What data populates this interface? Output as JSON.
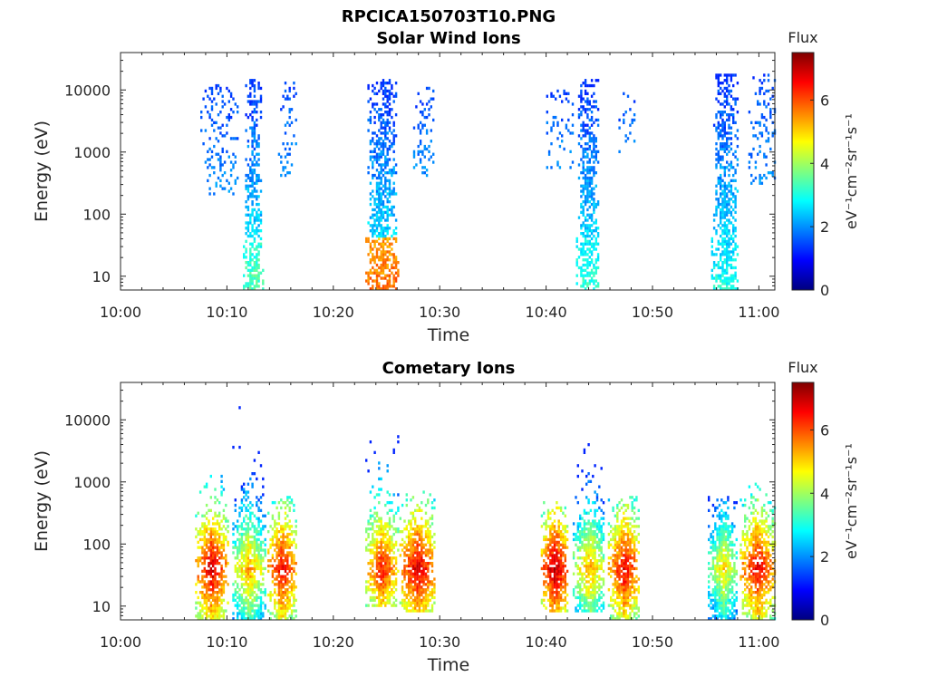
{
  "figure_title": "RPCICA150703T10.PNG",
  "colorbar_colors": [
    "#00007f",
    "#0000ff",
    "#007fff",
    "#00ffff",
    "#7fff7f",
    "#ffff00",
    "#ff7f00",
    "#ff0000",
    "#7f0000"
  ],
  "chart_data": [
    {
      "type": "heatmap",
      "title": "Solar Wind Ions",
      "xlabel": "Time",
      "ylabel": "Energy (eV)",
      "x_tick_labels": [
        "10:00",
        "10:10",
        "10:20",
        "10:30",
        "10:40",
        "10:50",
        "11:00"
      ],
      "x_range_minutes": [
        0,
        61.5
      ],
      "y_scale": "log",
      "y_tick_labels": [
        "10",
        "100",
        "1000",
        "10000"
      ],
      "y_range": [
        6,
        40000
      ],
      "colorbar": {
        "title": "Flux",
        "label": "eV⁻¹cm⁻²sr⁻¹s⁻¹",
        "range": [
          0,
          7.5
        ],
        "tick_labels": [
          "0",
          "2",
          "4",
          "6"
        ]
      },
      "bursts": [
        {
          "t_min": 7.5,
          "t_max": 11.0,
          "e_min": 200,
          "e_max": 12000,
          "peak_flux": 2.0,
          "sparse": true
        },
        {
          "t_min": 11.5,
          "t_max": 13.3,
          "e_min": 6,
          "e_max": 15000,
          "peak_flux": 3.4
        },
        {
          "t_min": 14.8,
          "t_max": 16.5,
          "e_min": 400,
          "e_max": 15000,
          "peak_flux": 2.0,
          "sparse": true
        },
        {
          "t_min": 23.0,
          "t_max": 26.0,
          "e_min": 6,
          "e_max": 15000,
          "peak_flux": 5.8
        },
        {
          "t_min": 27.5,
          "t_max": 29.3,
          "e_min": 400,
          "e_max": 11000,
          "peak_flux": 2.0,
          "sparse": true
        },
        {
          "t_min": 40.0,
          "t_max": 42.5,
          "e_min": 500,
          "e_max": 10000,
          "peak_flux": 2.0,
          "sparse": true
        },
        {
          "t_min": 42.8,
          "t_max": 45.0,
          "e_min": 6,
          "e_max": 15000,
          "peak_flux": 3.2
        },
        {
          "t_min": 46.8,
          "t_max": 48.3,
          "e_min": 700,
          "e_max": 10000,
          "peak_flux": 2.0,
          "sparse": true
        },
        {
          "t_min": 55.5,
          "t_max": 58.0,
          "e_min": 6,
          "e_max": 18000,
          "peak_flux": 3.0
        },
        {
          "t_min": 59.0,
          "t_max": 61.5,
          "e_min": 300,
          "e_max": 18000,
          "peak_flux": 2.0,
          "sparse": true
        }
      ]
    },
    {
      "type": "heatmap",
      "title": "Cometary Ions",
      "xlabel": "Time",
      "ylabel": "Energy (eV)",
      "x_tick_labels": [
        "10:00",
        "10:10",
        "10:20",
        "10:30",
        "10:40",
        "10:50",
        "11:00"
      ],
      "x_range_minutes": [
        0,
        61.5
      ],
      "y_scale": "log",
      "y_tick_labels": [
        "10",
        "100",
        "1000",
        "10000"
      ],
      "y_range": [
        6,
        40000
      ],
      "colorbar": {
        "title": "Flux",
        "label": "eV⁻¹cm⁻²sr⁻¹s⁻¹",
        "range": [
          0,
          7.5
        ],
        "tick_labels": [
          "0",
          "2",
          "4",
          "6"
        ]
      },
      "bursts": [
        {
          "t_min": 7.0,
          "t_max": 10.0,
          "e_min": 6,
          "e_max": 1300,
          "peak_flux": 7.0
        },
        {
          "t_min": 10.5,
          "t_max": 13.5,
          "e_min": 6,
          "e_max": 25000,
          "peak_flux": 5.5
        },
        {
          "t_min": 13.8,
          "t_max": 16.5,
          "e_min": 6,
          "e_max": 600,
          "peak_flux": 6.8
        },
        {
          "t_min": 23.0,
          "t_max": 26.0,
          "e_min": 10,
          "e_max": 6500,
          "peak_flux": 6.5
        },
        {
          "t_min": 26.2,
          "t_max": 29.5,
          "e_min": 8,
          "e_max": 700,
          "peak_flux": 7.0
        },
        {
          "t_min": 39.5,
          "t_max": 42.0,
          "e_min": 8,
          "e_max": 500,
          "peak_flux": 7.2
        },
        {
          "t_min": 42.5,
          "t_max": 45.5,
          "e_min": 8,
          "e_max": 5200,
          "peak_flux": 5.5
        },
        {
          "t_min": 45.8,
          "t_max": 48.8,
          "e_min": 6,
          "e_max": 600,
          "peak_flux": 6.8
        },
        {
          "t_min": 55.2,
          "t_max": 58.0,
          "e_min": 6,
          "e_max": 600,
          "peak_flux": 5.0
        },
        {
          "t_min": 58.2,
          "t_max": 61.5,
          "e_min": 6,
          "e_max": 1000,
          "peak_flux": 6.8
        }
      ]
    }
  ]
}
